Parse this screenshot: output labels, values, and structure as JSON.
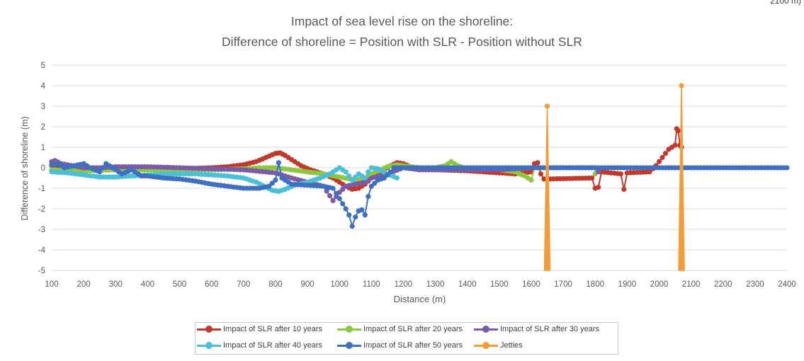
{
  "corner_text": "2100 m)",
  "chart_data": {
    "type": "line",
    "title": [
      "Impact of sea level rise on the shoreline:",
      "Difference of shoreline = Position with SLR - Position without SLR"
    ],
    "xlabel": "Distance (m)",
    "ylabel": "Difference of shoreline (m)",
    "xlim": [
      100,
      2400
    ],
    "ylim": [
      -5,
      5
    ],
    "xticks": [
      "100",
      "200",
      "300",
      "400",
      "500",
      "600",
      "700",
      "800",
      "900",
      "1000",
      "1100",
      "1200",
      "1300",
      "1400",
      "1500",
      "1600",
      "1700",
      "1800",
      "1900",
      "2000",
      "2100",
      "2200",
      "2300",
      "2400"
    ],
    "yticks": [
      "5",
      "4",
      "3",
      "2",
      "1",
      "0",
      "-1",
      "-2",
      "-3",
      "-4",
      "-5"
    ],
    "grid": "horizontal",
    "legend_position": "bottom",
    "series": [
      {
        "name": "Impact of SLR after 10 years",
        "color": "#c0392b",
        "x_end": 2070,
        "points": [
          [
            100,
            0.1
          ],
          [
            200,
            0
          ],
          [
            300,
            -0.05
          ],
          [
            400,
            -0.05
          ],
          [
            500,
            -0.05
          ],
          [
            600,
            0
          ],
          [
            650,
            0.05
          ],
          [
            700,
            0.15
          ],
          [
            740,
            0.3
          ],
          [
            770,
            0.5
          ],
          [
            800,
            0.7
          ],
          [
            815,
            0.72
          ],
          [
            830,
            0.6
          ],
          [
            850,
            0.4
          ],
          [
            880,
            0.1
          ],
          [
            910,
            -0.1
          ],
          [
            950,
            -0.3
          ],
          [
            980,
            -0.5
          ],
          [
            1000,
            -0.7
          ],
          [
            1020,
            -0.9
          ],
          [
            1040,
            -1.05
          ],
          [
            1060,
            -1
          ],
          [
            1080,
            -0.8
          ],
          [
            1100,
            -0.5
          ],
          [
            1130,
            -0.2
          ],
          [
            1160,
            0.1
          ],
          [
            1180,
            0.25
          ],
          [
            1200,
            0.2
          ],
          [
            1230,
            0
          ],
          [
            1300,
            -0.1
          ],
          [
            1400,
            -0.15
          ],
          [
            1500,
            -0.25
          ],
          [
            1550,
            -0.3
          ],
          [
            1600,
            -0.2
          ],
          [
            1610,
            0.2
          ],
          [
            1620,
            0.25
          ],
          [
            1630,
            -0.3
          ],
          [
            1640,
            -0.55
          ],
          [
            1790,
            -0.5
          ],
          [
            1800,
            -1
          ],
          [
            1810,
            -0.95
          ],
          [
            1820,
            -0.2
          ],
          [
            1880,
            -0.3
          ],
          [
            1890,
            -1.05
          ],
          [
            1900,
            -0.25
          ],
          [
            1970,
            -0.2
          ],
          [
            1990,
            0.1
          ],
          [
            2000,
            0.3
          ],
          [
            2010,
            0.5
          ],
          [
            2020,
            0.7
          ],
          [
            2030,
            0.9
          ],
          [
            2040,
            1
          ],
          [
            2050,
            1.1
          ],
          [
            2055,
            1.9
          ],
          [
            2060,
            1.8
          ],
          [
            2065,
            1.1
          ],
          [
            2070,
            1
          ]
        ]
      },
      {
        "name": "Impact of SLR after 20 years",
        "color": "#8dc63f",
        "x_end": 1800,
        "points": [
          [
            100,
            -0.1
          ],
          [
            200,
            -0.15
          ],
          [
            300,
            -0.1
          ],
          [
            400,
            -0.1
          ],
          [
            500,
            -0.1
          ],
          [
            600,
            -0.1
          ],
          [
            700,
            -0.05
          ],
          [
            750,
            0
          ],
          [
            800,
            0
          ],
          [
            850,
            -0.1
          ],
          [
            900,
            -0.2
          ],
          [
            950,
            -0.3
          ],
          [
            1000,
            -0.45
          ],
          [
            1050,
            -0.6
          ],
          [
            1080,
            -0.5
          ],
          [
            1100,
            -0.3
          ],
          [
            1150,
            0.05
          ],
          [
            1180,
            0.15
          ],
          [
            1200,
            0.1
          ],
          [
            1250,
            0
          ],
          [
            1300,
            0
          ],
          [
            1330,
            0.1
          ],
          [
            1350,
            0.3
          ],
          [
            1370,
            0.1
          ],
          [
            1400,
            -0.05
          ],
          [
            1500,
            -0.1
          ],
          [
            1550,
            -0.2
          ],
          [
            1580,
            -0.4
          ],
          [
            1600,
            -0.6
          ],
          [
            1610,
            0
          ],
          [
            1800,
            0
          ],
          [
            1800,
            -0.3
          ]
        ]
      },
      {
        "name": "Impact of SLR after 30 years",
        "color": "#7b5aa6",
        "x_end": 1810,
        "points": [
          [
            100,
            0.3
          ],
          [
            110,
            0.35
          ],
          [
            130,
            0.2
          ],
          [
            200,
            0
          ],
          [
            250,
            0
          ],
          [
            300,
            0.05
          ],
          [
            400,
            0.05
          ],
          [
            500,
            0
          ],
          [
            600,
            -0.05
          ],
          [
            700,
            -0.1
          ],
          [
            800,
            -0.25
          ],
          [
            850,
            -0.5
          ],
          [
            900,
            -0.7
          ],
          [
            950,
            -0.9
          ],
          [
            980,
            -1.6
          ],
          [
            1000,
            -1.2
          ],
          [
            1020,
            -0.9
          ],
          [
            1050,
            -0.8
          ],
          [
            1080,
            -0.7
          ],
          [
            1100,
            -0.5
          ],
          [
            1150,
            -0.3
          ],
          [
            1200,
            0
          ],
          [
            1250,
            -0.1
          ],
          [
            1300,
            -0.1
          ],
          [
            1400,
            -0.1
          ],
          [
            1500,
            -0.1
          ],
          [
            1600,
            0
          ],
          [
            1800,
            0
          ],
          [
            1810,
            -0.2
          ]
        ]
      },
      {
        "name": "Impact of SLR after 40 years",
        "color": "#4bbfd6",
        "x_end": 1180,
        "points": [
          [
            100,
            -0.2
          ],
          [
            150,
            -0.25
          ],
          [
            200,
            -0.35
          ],
          [
            250,
            -0.45
          ],
          [
            300,
            -0.45
          ],
          [
            350,
            -0.4
          ],
          [
            400,
            -0.35
          ],
          [
            450,
            -0.3
          ],
          [
            500,
            -0.3
          ],
          [
            550,
            -0.3
          ],
          [
            600,
            -0.35
          ],
          [
            650,
            -0.4
          ],
          [
            700,
            -0.5
          ],
          [
            740,
            -0.7
          ],
          [
            770,
            -0.95
          ],
          [
            790,
            -1.1
          ],
          [
            810,
            -1.15
          ],
          [
            830,
            -1.05
          ],
          [
            860,
            -0.85
          ],
          [
            900,
            -0.7
          ],
          [
            940,
            -0.5
          ],
          [
            970,
            -0.3
          ],
          [
            1000,
            0
          ],
          [
            1020,
            -0.2
          ],
          [
            1040,
            -0.6
          ],
          [
            1060,
            -0.3
          ],
          [
            1080,
            -0.5
          ],
          [
            1090,
            -0.2
          ],
          [
            1100,
            0
          ],
          [
            1120,
            -0.05
          ],
          [
            1150,
            -0.3
          ],
          [
            1180,
            -0.5
          ]
        ]
      },
      {
        "name": "Impact of SLR after 50 years",
        "color": "#3f6fbf",
        "x_end": 2400,
        "points": [
          [
            100,
            0.15
          ],
          [
            120,
            0.2
          ],
          [
            140,
            0
          ],
          [
            170,
            0.1
          ],
          [
            200,
            0.2
          ],
          [
            220,
            0
          ],
          [
            250,
            -0.2
          ],
          [
            270,
            0.2
          ],
          [
            300,
            -0.1
          ],
          [
            320,
            -0.3
          ],
          [
            350,
            -0.1
          ],
          [
            380,
            -0.4
          ],
          [
            400,
            -0.4
          ],
          [
            450,
            -0.5
          ],
          [
            500,
            -0.55
          ],
          [
            550,
            -0.65
          ],
          [
            600,
            -0.8
          ],
          [
            650,
            -0.9
          ],
          [
            700,
            -1
          ],
          [
            750,
            -1
          ],
          [
            780,
            -0.9
          ],
          [
            800,
            -0.6
          ],
          [
            810,
            0.25
          ],
          [
            820,
            -0.5
          ],
          [
            850,
            -0.8
          ],
          [
            900,
            -0.85
          ],
          [
            950,
            -0.9
          ],
          [
            980,
            -1
          ],
          [
            1000,
            -1.5
          ],
          [
            1010,
            -1.75
          ],
          [
            1020,
            -2
          ],
          [
            1030,
            -2.3
          ],
          [
            1040,
            -2.85
          ],
          [
            1050,
            -2.4
          ],
          [
            1060,
            -2.1
          ],
          [
            1070,
            -2.05
          ],
          [
            1080,
            -2.3
          ],
          [
            1090,
            -1.4
          ],
          [
            1100,
            -0.9
          ],
          [
            1120,
            -0.6
          ],
          [
            1140,
            -0.5
          ],
          [
            1160,
            -0.2
          ],
          [
            1170,
            0
          ],
          [
            1200,
            0
          ],
          [
            1300,
            0
          ],
          [
            1400,
            0
          ],
          [
            1500,
            0
          ],
          [
            1600,
            0
          ],
          [
            1700,
            0
          ],
          [
            1800,
            0
          ],
          [
            1900,
            0
          ],
          [
            2000,
            0
          ],
          [
            2100,
            0
          ],
          [
            2200,
            0
          ],
          [
            2300,
            0
          ],
          [
            2400,
            0
          ]
        ]
      },
      {
        "name": "Jetties",
        "color": "#f39c3a",
        "points": [
          [
            1650,
            3
          ],
          [
            1650,
            -5
          ],
          [
            2070,
            4
          ],
          [
            2070,
            -5
          ]
        ]
      }
    ]
  }
}
